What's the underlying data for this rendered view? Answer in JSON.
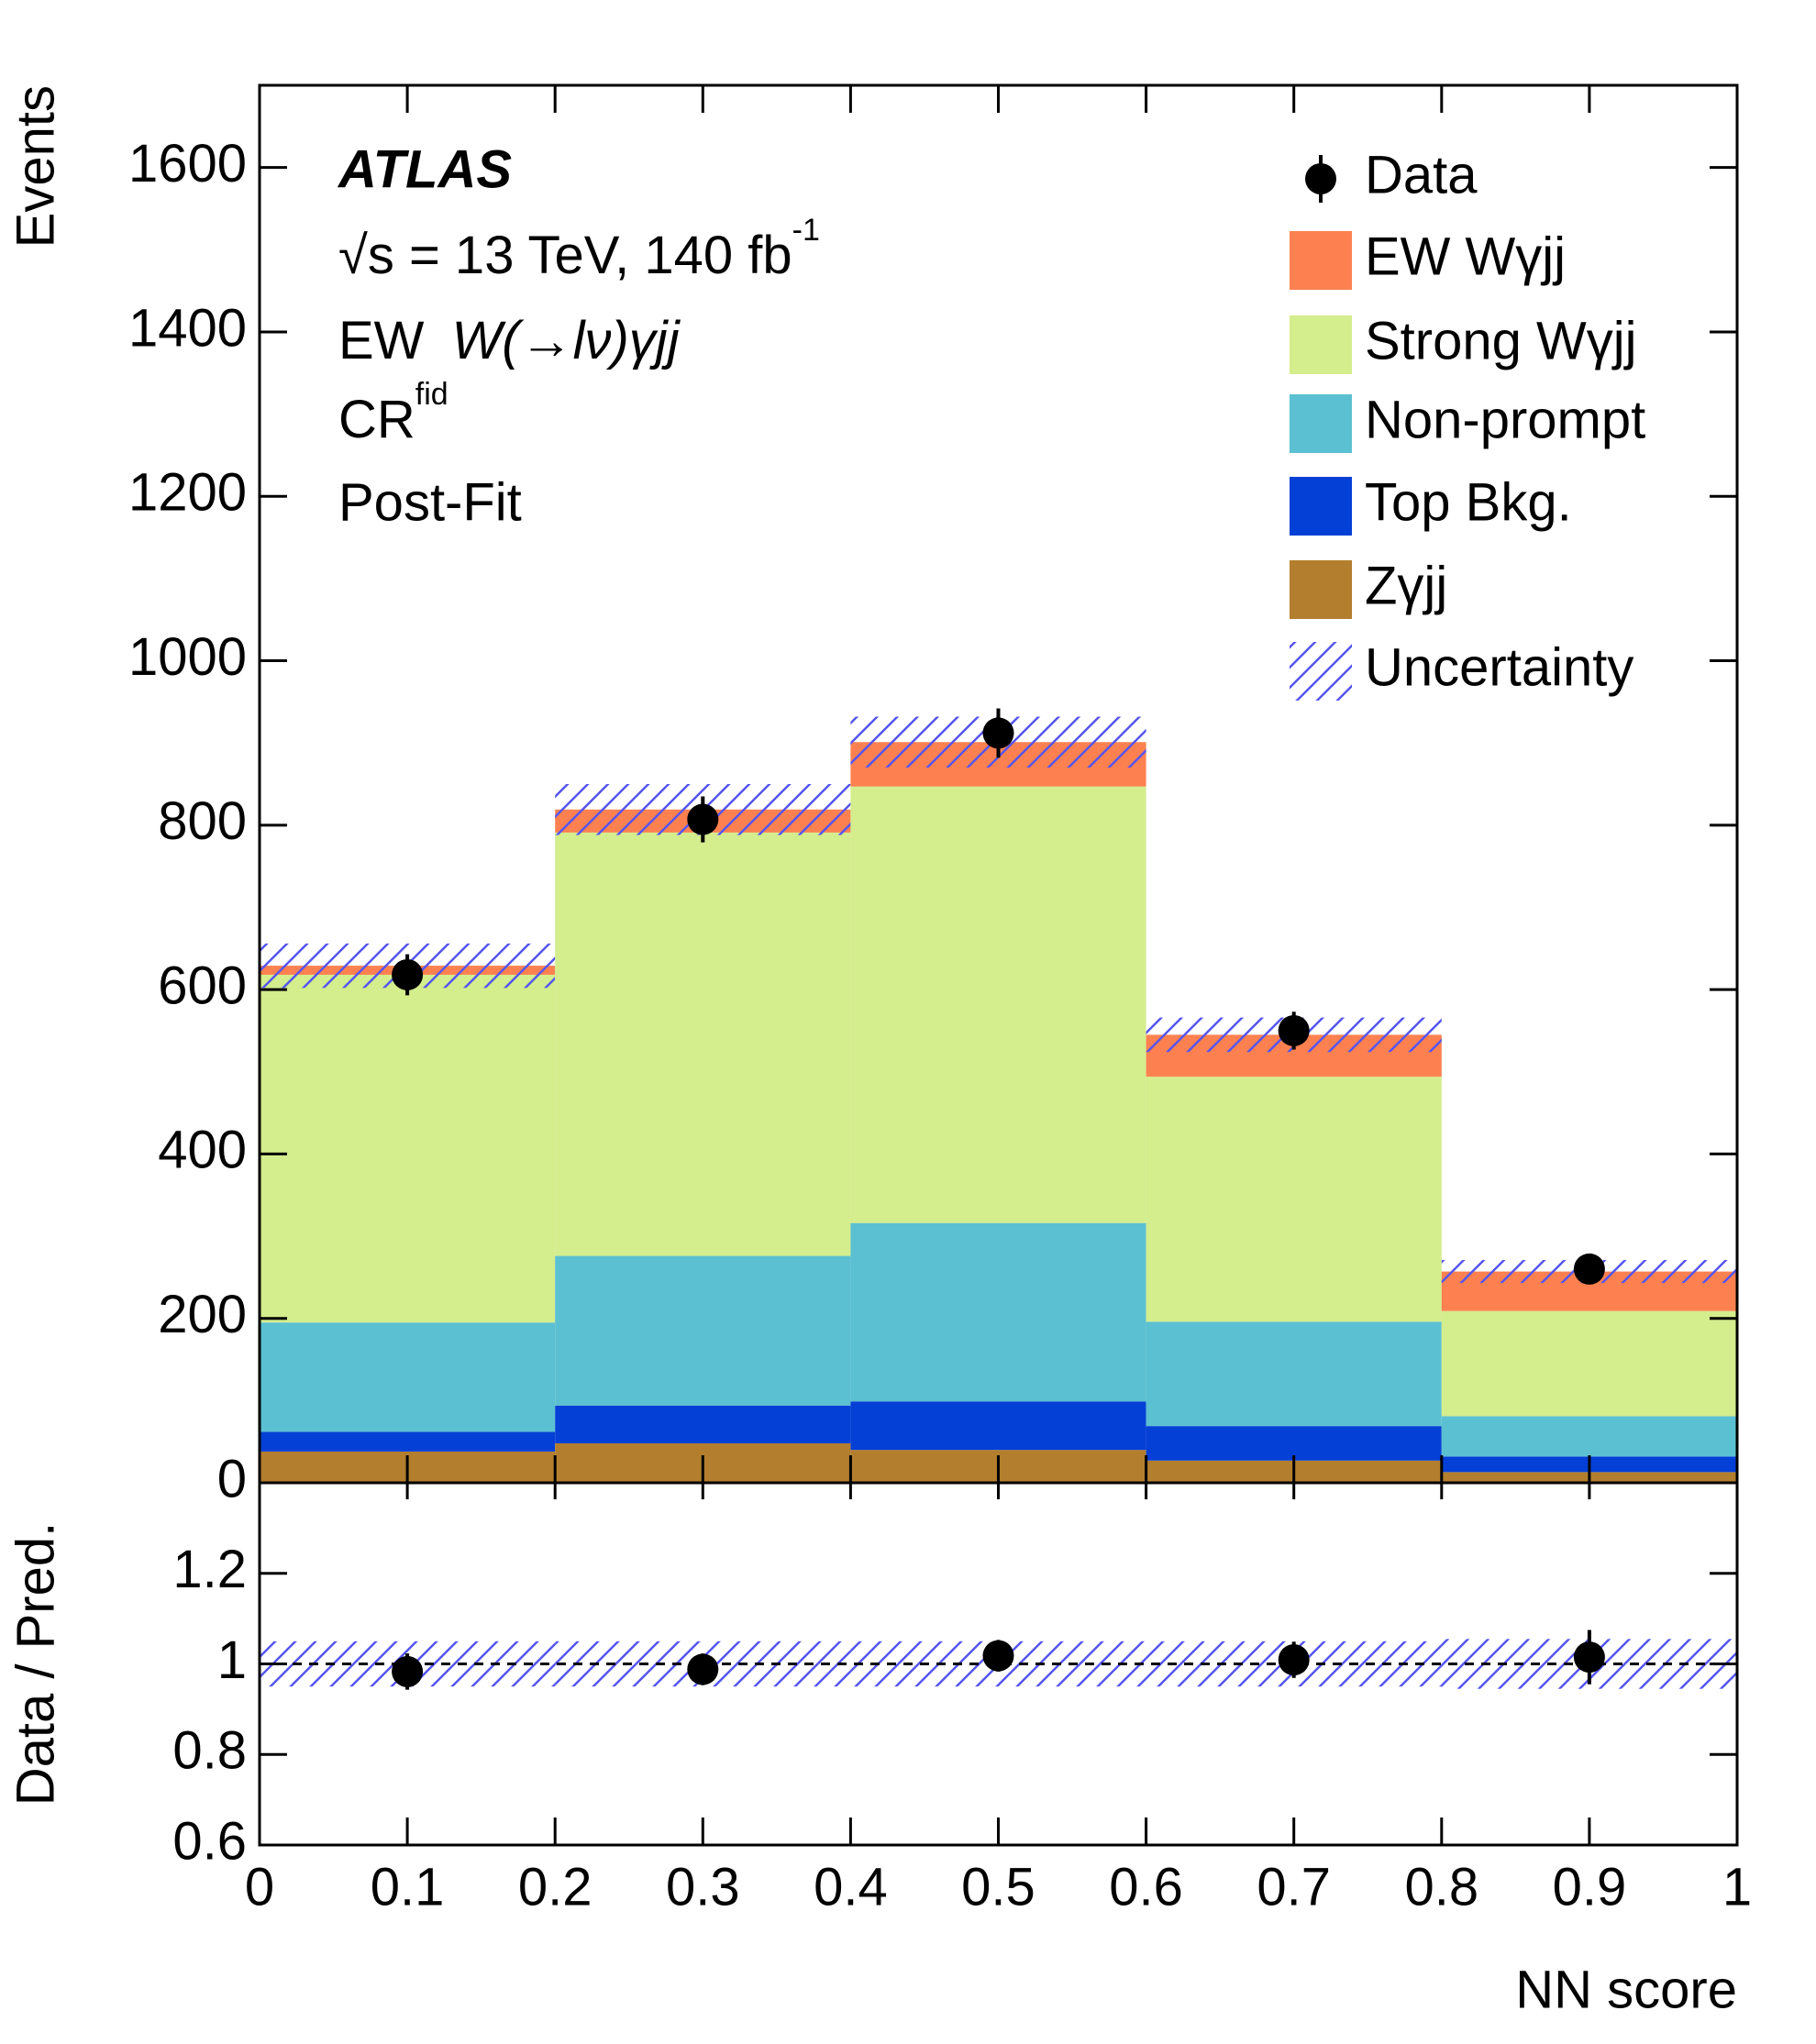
{
  "chart_data": [
    {
      "type": "histogram",
      "ylabel": "Events",
      "annotations": [
        "ATLAS",
        {
          "text": "√s = 13 TeV, 140 fb",
          "sup": "-1"
        },
        {
          "text": "EW ",
          "italic": "W(→lν)γjj"
        },
        {
          "text": "CR",
          "sup": "fid"
        },
        "Post-Fit"
      ],
      "bins": [
        0,
        0.2,
        0.4,
        0.6,
        0.8,
        1
      ],
      "xlim": [
        0,
        1
      ],
      "ylim": [
        0,
        1700
      ],
      "yticks": [
        0,
        200,
        400,
        600,
        800,
        1000,
        1200,
        1400,
        1600
      ],
      "legend": "top right",
      "data": {
        "name": "Data",
        "values": [
          618,
          807,
          912,
          550,
          260
        ],
        "errors": [
          25,
          28,
          30,
          23,
          16
        ]
      },
      "series": [
        {
          "name": "EW Wγjj",
          "color": "#fd8150",
          "values": [
            11,
            28,
            54,
            51,
            48
          ]
        },
        {
          "name": "Strong Wγjj",
          "color": "#d4ed8d",
          "values": [
            423,
            515,
            531,
            298,
            128
          ]
        },
        {
          "name": "Non-prompt",
          "color": "#5bc0d1",
          "values": [
            133,
            182,
            217,
            127,
            49
          ]
        },
        {
          "name": "Top Bkg.",
          "color": "#0540d6",
          "values": [
            24,
            46,
            59,
            42,
            19
          ]
        },
        {
          "name": "Zγjj",
          "color": "#b37e2e",
          "values": [
            38,
            48,
            40,
            27,
            13
          ]
        }
      ],
      "uncertainty": {
        "name": "Uncertainty",
        "color": "#5555ee",
        "values": [
          27,
          31,
          31,
          21,
          14
        ]
      }
    },
    {
      "type": "errorbar",
      "ylabel": "Data / Pred.",
      "xlabel": "NN score",
      "xlim": [
        0,
        1
      ],
      "xticks": [
        0,
        0.1,
        0.2,
        0.3,
        0.4,
        0.5,
        0.6,
        0.7,
        0.8,
        0.9,
        1
      ],
      "ylim": [
        0.6,
        1.4
      ],
      "yticks": [
        0.6,
        0.8,
        1,
        1.2
      ],
      "reference_line": 1,
      "values": [
        0.983,
        0.988,
        1.018,
        1.009,
        1.015
      ],
      "errors": [
        0.04,
        0.035,
        0.035,
        0.04,
        0.06
      ],
      "uncertainty": [
        0.05,
        0.05,
        0.05,
        0.05,
        0.055
      ]
    }
  ]
}
